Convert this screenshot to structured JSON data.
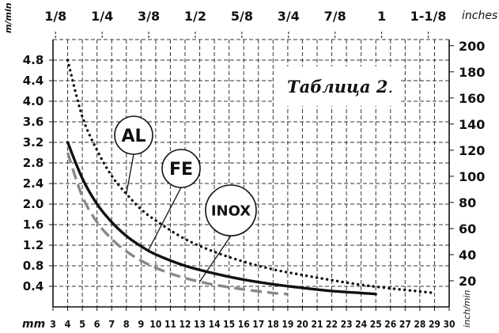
{
  "chart_data": {
    "type": "line",
    "title": "Таблица 2",
    "title_suffix": ".",
    "x_bottom": {
      "unit": "mm",
      "ticks": [
        "3",
        "4",
        "5",
        "6",
        "7",
        "8",
        "9",
        "10",
        "11",
        "12",
        "13",
        "14",
        "15",
        "16",
        "17",
        "18",
        "19",
        "20",
        "21",
        "22",
        "23",
        "24",
        "25",
        "26",
        "27",
        "28",
        "29",
        "30"
      ],
      "range": [
        3,
        30
      ]
    },
    "x_top": {
      "unit": "inches",
      "ticks": [
        {
          "label": "1/8",
          "mm": 3.175
        },
        {
          "label": "1/4",
          "mm": 6.35
        },
        {
          "label": "3/8",
          "mm": 9.525
        },
        {
          "label": "1/2",
          "mm": 12.7
        },
        {
          "label": "5/8",
          "mm": 15.875
        },
        {
          "label": "3/4",
          "mm": 19.05
        },
        {
          "label": "7/8",
          "mm": 22.225
        },
        {
          "label": "1",
          "mm": 25.4
        },
        {
          "label": "1-1/8",
          "mm": 28.575
        }
      ]
    },
    "y_left": {
      "unit": "m/min",
      "ticks": [
        "0.4",
        "0.8",
        "1.2",
        "1.6",
        "2.0",
        "2.4",
        "2.8",
        "3.2",
        "3.6",
        "4.0",
        "4.4",
        "4.8"
      ],
      "range": [
        0,
        5.2
      ]
    },
    "y_right": {
      "unit": "inch/min",
      "ticks": [
        "20",
        "40",
        "60",
        "80",
        "100",
        "120",
        "140",
        "160",
        "180",
        "200"
      ],
      "range": [
        0,
        204.7
      ]
    },
    "grid": true,
    "series": [
      {
        "name": "AL",
        "style": "dotted",
        "color": "#111111",
        "x": [
          4,
          5,
          6,
          7,
          8,
          9,
          10,
          12,
          14,
          16,
          18,
          20,
          22,
          24,
          26,
          28,
          29
        ],
        "y": [
          4.8,
          3.7,
          3.05,
          2.55,
          2.2,
          1.9,
          1.68,
          1.32,
          1.07,
          0.88,
          0.73,
          0.62,
          0.52,
          0.43,
          0.36,
          0.3,
          0.27
        ]
      },
      {
        "name": "FE",
        "style": "solid",
        "color": "#111111",
        "x": [
          4,
          5,
          6,
          7,
          8,
          9,
          10,
          12,
          14,
          16,
          18,
          20,
          22,
          24,
          25
        ],
        "y": [
          3.2,
          2.5,
          2.0,
          1.65,
          1.38,
          1.18,
          1.02,
          0.8,
          0.65,
          0.53,
          0.44,
          0.37,
          0.31,
          0.27,
          0.25
        ]
      },
      {
        "name": "INOX",
        "style": "dashed",
        "color": "#888888",
        "x": [
          4,
          5,
          6,
          7,
          8,
          9,
          10,
          11,
          12,
          13,
          14,
          16,
          18,
          19
        ],
        "y": [
          3.0,
          2.15,
          1.65,
          1.32,
          1.08,
          0.9,
          0.76,
          0.65,
          0.56,
          0.49,
          0.43,
          0.34,
          0.27,
          0.25
        ]
      }
    ],
    "callouts": [
      {
        "series": "AL",
        "text": "AL"
      },
      {
        "series": "FE",
        "text": "FE"
      },
      {
        "series": "INOX",
        "text": "INOX"
      }
    ]
  }
}
